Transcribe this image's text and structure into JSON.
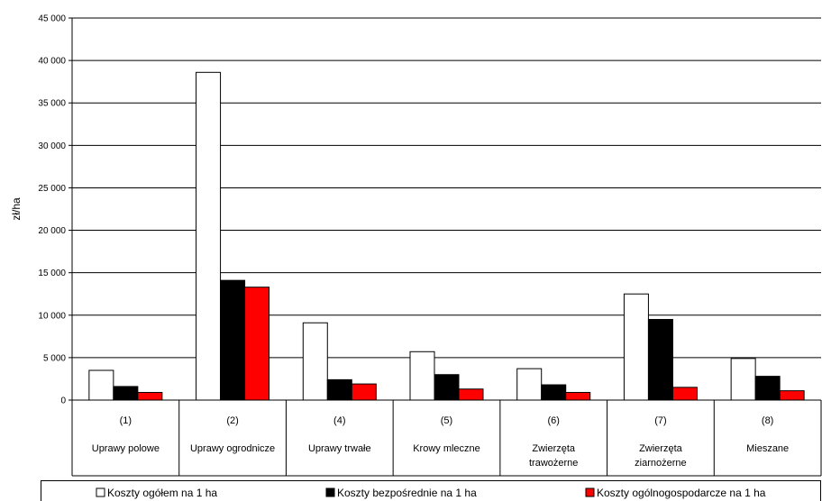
{
  "chart_data": {
    "type": "bar",
    "title": "",
    "xlabel": "",
    "ylabel": "zł/ha",
    "ylim": [
      0,
      45000
    ],
    "ytick_step": 5000,
    "yticks": [
      "0",
      "5 000",
      "10 000",
      "15 000",
      "20 000",
      "25 000",
      "30 000",
      "35 000",
      "40 000",
      "45 000"
    ],
    "grid": true,
    "legend_position": "bottom",
    "categories": [
      {
        "code": "(1)",
        "name": [
          "Uprawy polowe"
        ]
      },
      {
        "code": "(2)",
        "name": [
          "Uprawy ogrodnicze"
        ]
      },
      {
        "code": "(4)",
        "name": [
          "Uprawy trwałe"
        ]
      },
      {
        "code": "(5)",
        "name": [
          "Krowy mleczne"
        ]
      },
      {
        "code": "(6)",
        "name": [
          "Zwierzęta",
          "trawożerne"
        ]
      },
      {
        "code": "(7)",
        "name": [
          "Zwierzęta",
          "ziarnożerne"
        ]
      },
      {
        "code": "(8)",
        "name": [
          "Mieszane"
        ]
      }
    ],
    "series": [
      {
        "name": "Koszty ogółem na 1 ha",
        "color": "#ffffff",
        "values": [
          3500,
          38600,
          9100,
          5700,
          3700,
          12500,
          4900
        ]
      },
      {
        "name": "Koszty bezpośrednie na 1 ha",
        "color": "#000000",
        "values": [
          1600,
          14100,
          2400,
          3000,
          1800,
          9500,
          2800
        ]
      },
      {
        "name": "Koszty ogólnogospodarcze na 1 ha",
        "color": "#ff0000",
        "values": [
          900,
          13300,
          1900,
          1300,
          900,
          1500,
          1100
        ]
      }
    ]
  }
}
